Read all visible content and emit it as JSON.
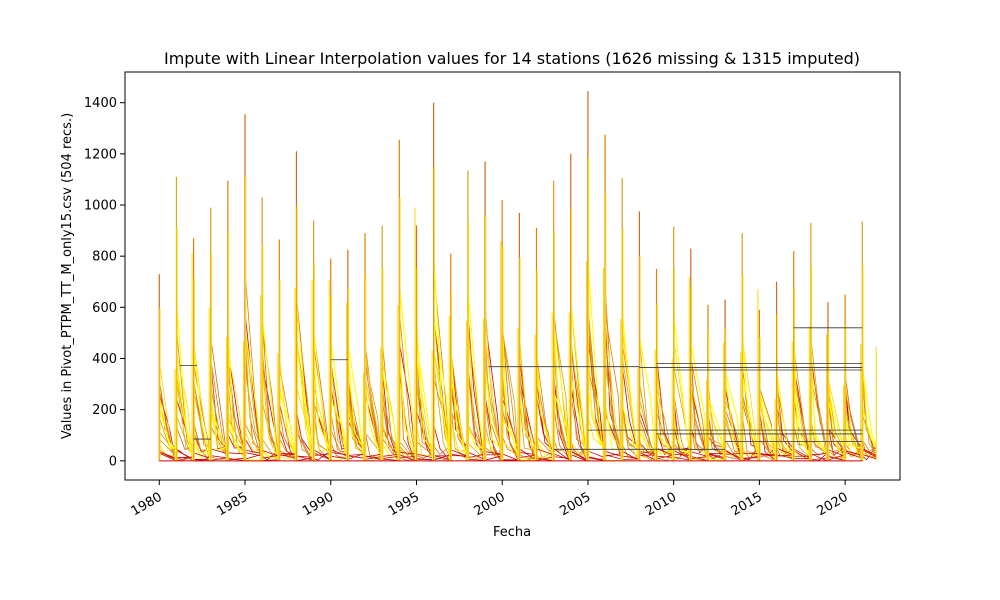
{
  "chart_data": {
    "type": "line",
    "title": "Impute with Linear Interpolation values for 14 stations (1626 missing & 1315 imputed)",
    "xlabel": "Fecha",
    "ylabel": "Values in Pivot_PTPM_TT_M_only15.csv (504 recs.)",
    "xlim": [
      1978.0,
      2023.2
    ],
    "ylim": [
      -75,
      1520
    ],
    "xticks": [
      1980,
      1985,
      1990,
      1995,
      2000,
      2005,
      2010,
      2015,
      2020
    ],
    "yticks": [
      0,
      200,
      400,
      600,
      800,
      1000,
      1200,
      1400
    ],
    "grid": false,
    "legend": "none",
    "annual_peaks": [
      {
        "year": 1980,
        "peak": 730,
        "color": "#d2691e"
      },
      {
        "year": 1981,
        "peak": 1110,
        "color": "#d2b100"
      },
      {
        "year": 1982,
        "peak": 870,
        "color": "#e08000"
      },
      {
        "year": 1983,
        "peak": 990,
        "color": "#d4a017"
      },
      {
        "year": 1984,
        "peak": 1095,
        "color": "#e08000"
      },
      {
        "year": 1985,
        "peak": 1355,
        "color": "#d2691e"
      },
      {
        "year": 1986,
        "peak": 1030,
        "color": "#d4a017"
      },
      {
        "year": 1987,
        "peak": 865,
        "color": "#e08000"
      },
      {
        "year": 1988,
        "peak": 1210,
        "color": "#d2691e"
      },
      {
        "year": 1989,
        "peak": 940,
        "color": "#d4a017"
      },
      {
        "year": 1990,
        "peak": 790,
        "color": "#e08000"
      },
      {
        "year": 1991,
        "peak": 825,
        "color": "#d2691e"
      },
      {
        "year": 1992,
        "peak": 890,
        "color": "#e08000"
      },
      {
        "year": 1993,
        "peak": 920,
        "color": "#d4a017"
      },
      {
        "year": 1994,
        "peak": 1255,
        "color": "#e08000"
      },
      {
        "year": 1995,
        "peak": 920,
        "color": "#d2691e"
      },
      {
        "year": 1996,
        "peak": 1400,
        "color": "#d2691e"
      },
      {
        "year": 1997,
        "peak": 810,
        "color": "#e08000"
      },
      {
        "year": 1998,
        "peak": 1135,
        "color": "#d4a017"
      },
      {
        "year": 1999,
        "peak": 1170,
        "color": "#d2691e"
      },
      {
        "year": 2000,
        "peak": 1020,
        "color": "#e08000"
      },
      {
        "year": 2001,
        "peak": 970,
        "color": "#d2691e"
      },
      {
        "year": 2002,
        "peak": 910,
        "color": "#e08000"
      },
      {
        "year": 2003,
        "peak": 1095,
        "color": "#d4a017"
      },
      {
        "year": 2004,
        "peak": 1200,
        "color": "#d2691e"
      },
      {
        "year": 2005,
        "peak": 1445,
        "color": "#d2691e"
      },
      {
        "year": 2006,
        "peak": 1275,
        "color": "#e08000"
      },
      {
        "year": 2007,
        "peak": 1105,
        "color": "#d4a017"
      },
      {
        "year": 2008,
        "peak": 975,
        "color": "#d2691e"
      },
      {
        "year": 2009,
        "peak": 750,
        "color": "#e08000"
      },
      {
        "year": 2010,
        "peak": 915,
        "color": "#d4a017"
      },
      {
        "year": 2011,
        "peak": 830,
        "color": "#d2691e"
      },
      {
        "year": 2012,
        "peak": 610,
        "color": "#e08000"
      },
      {
        "year": 2013,
        "peak": 630,
        "color": "#d2691e"
      },
      {
        "year": 2014,
        "peak": 890,
        "color": "#d4a017"
      },
      {
        "year": 2015,
        "peak": 590,
        "color": "#e08000"
      },
      {
        "year": 2016,
        "peak": 700,
        "color": "#d2691e"
      },
      {
        "year": 2017,
        "peak": 820,
        "color": "#e08000"
      },
      {
        "year": 2018,
        "peak": 930,
        "color": "#d4a017"
      },
      {
        "year": 2019,
        "peak": 620,
        "color": "#d2691e"
      },
      {
        "year": 2020,
        "peak": 650,
        "color": "#e08000"
      },
      {
        "year": 2021,
        "peak": 935,
        "color": "#d4a017"
      }
    ],
    "flat_series": [
      {
        "from": 2017.0,
        "to": 2021.0,
        "value": 520,
        "color": "#333333"
      },
      {
        "from": 2009.0,
        "to": 2021.0,
        "value": 380,
        "color": "#333333"
      },
      {
        "from": 2008.0,
        "to": 2021.0,
        "value": 365,
        "color": "#333333"
      },
      {
        "from": 2010.0,
        "to": 2021.0,
        "value": 355,
        "color": "#333333"
      },
      {
        "from": 1999.2,
        "to": 2008.0,
        "value": 368,
        "color": "#333333"
      },
      {
        "from": 2005.0,
        "to": 2021.0,
        "value": 120,
        "color": "#333333"
      },
      {
        "from": 2009.0,
        "to": 2021.0,
        "value": 105,
        "color": "#333333"
      },
      {
        "from": 2013.0,
        "to": 2021.0,
        "value": 75,
        "color": "#333333"
      },
      {
        "from": 2003.0,
        "to": 2013.0,
        "value": 45,
        "color": "#333333"
      },
      {
        "from": 1981.2,
        "to": 1982.2,
        "value": 372,
        "color": "#333333"
      },
      {
        "from": 1990.0,
        "to": 1991.0,
        "value": 395,
        "color": "#333333"
      },
      {
        "from": 1982.0,
        "to": 1983.0,
        "value": 85,
        "color": "#333333"
      }
    ],
    "palette": [
      "#cc0000",
      "#d2691e",
      "#e08000",
      "#d4a017",
      "#ffd700",
      "#ffff00"
    ]
  }
}
